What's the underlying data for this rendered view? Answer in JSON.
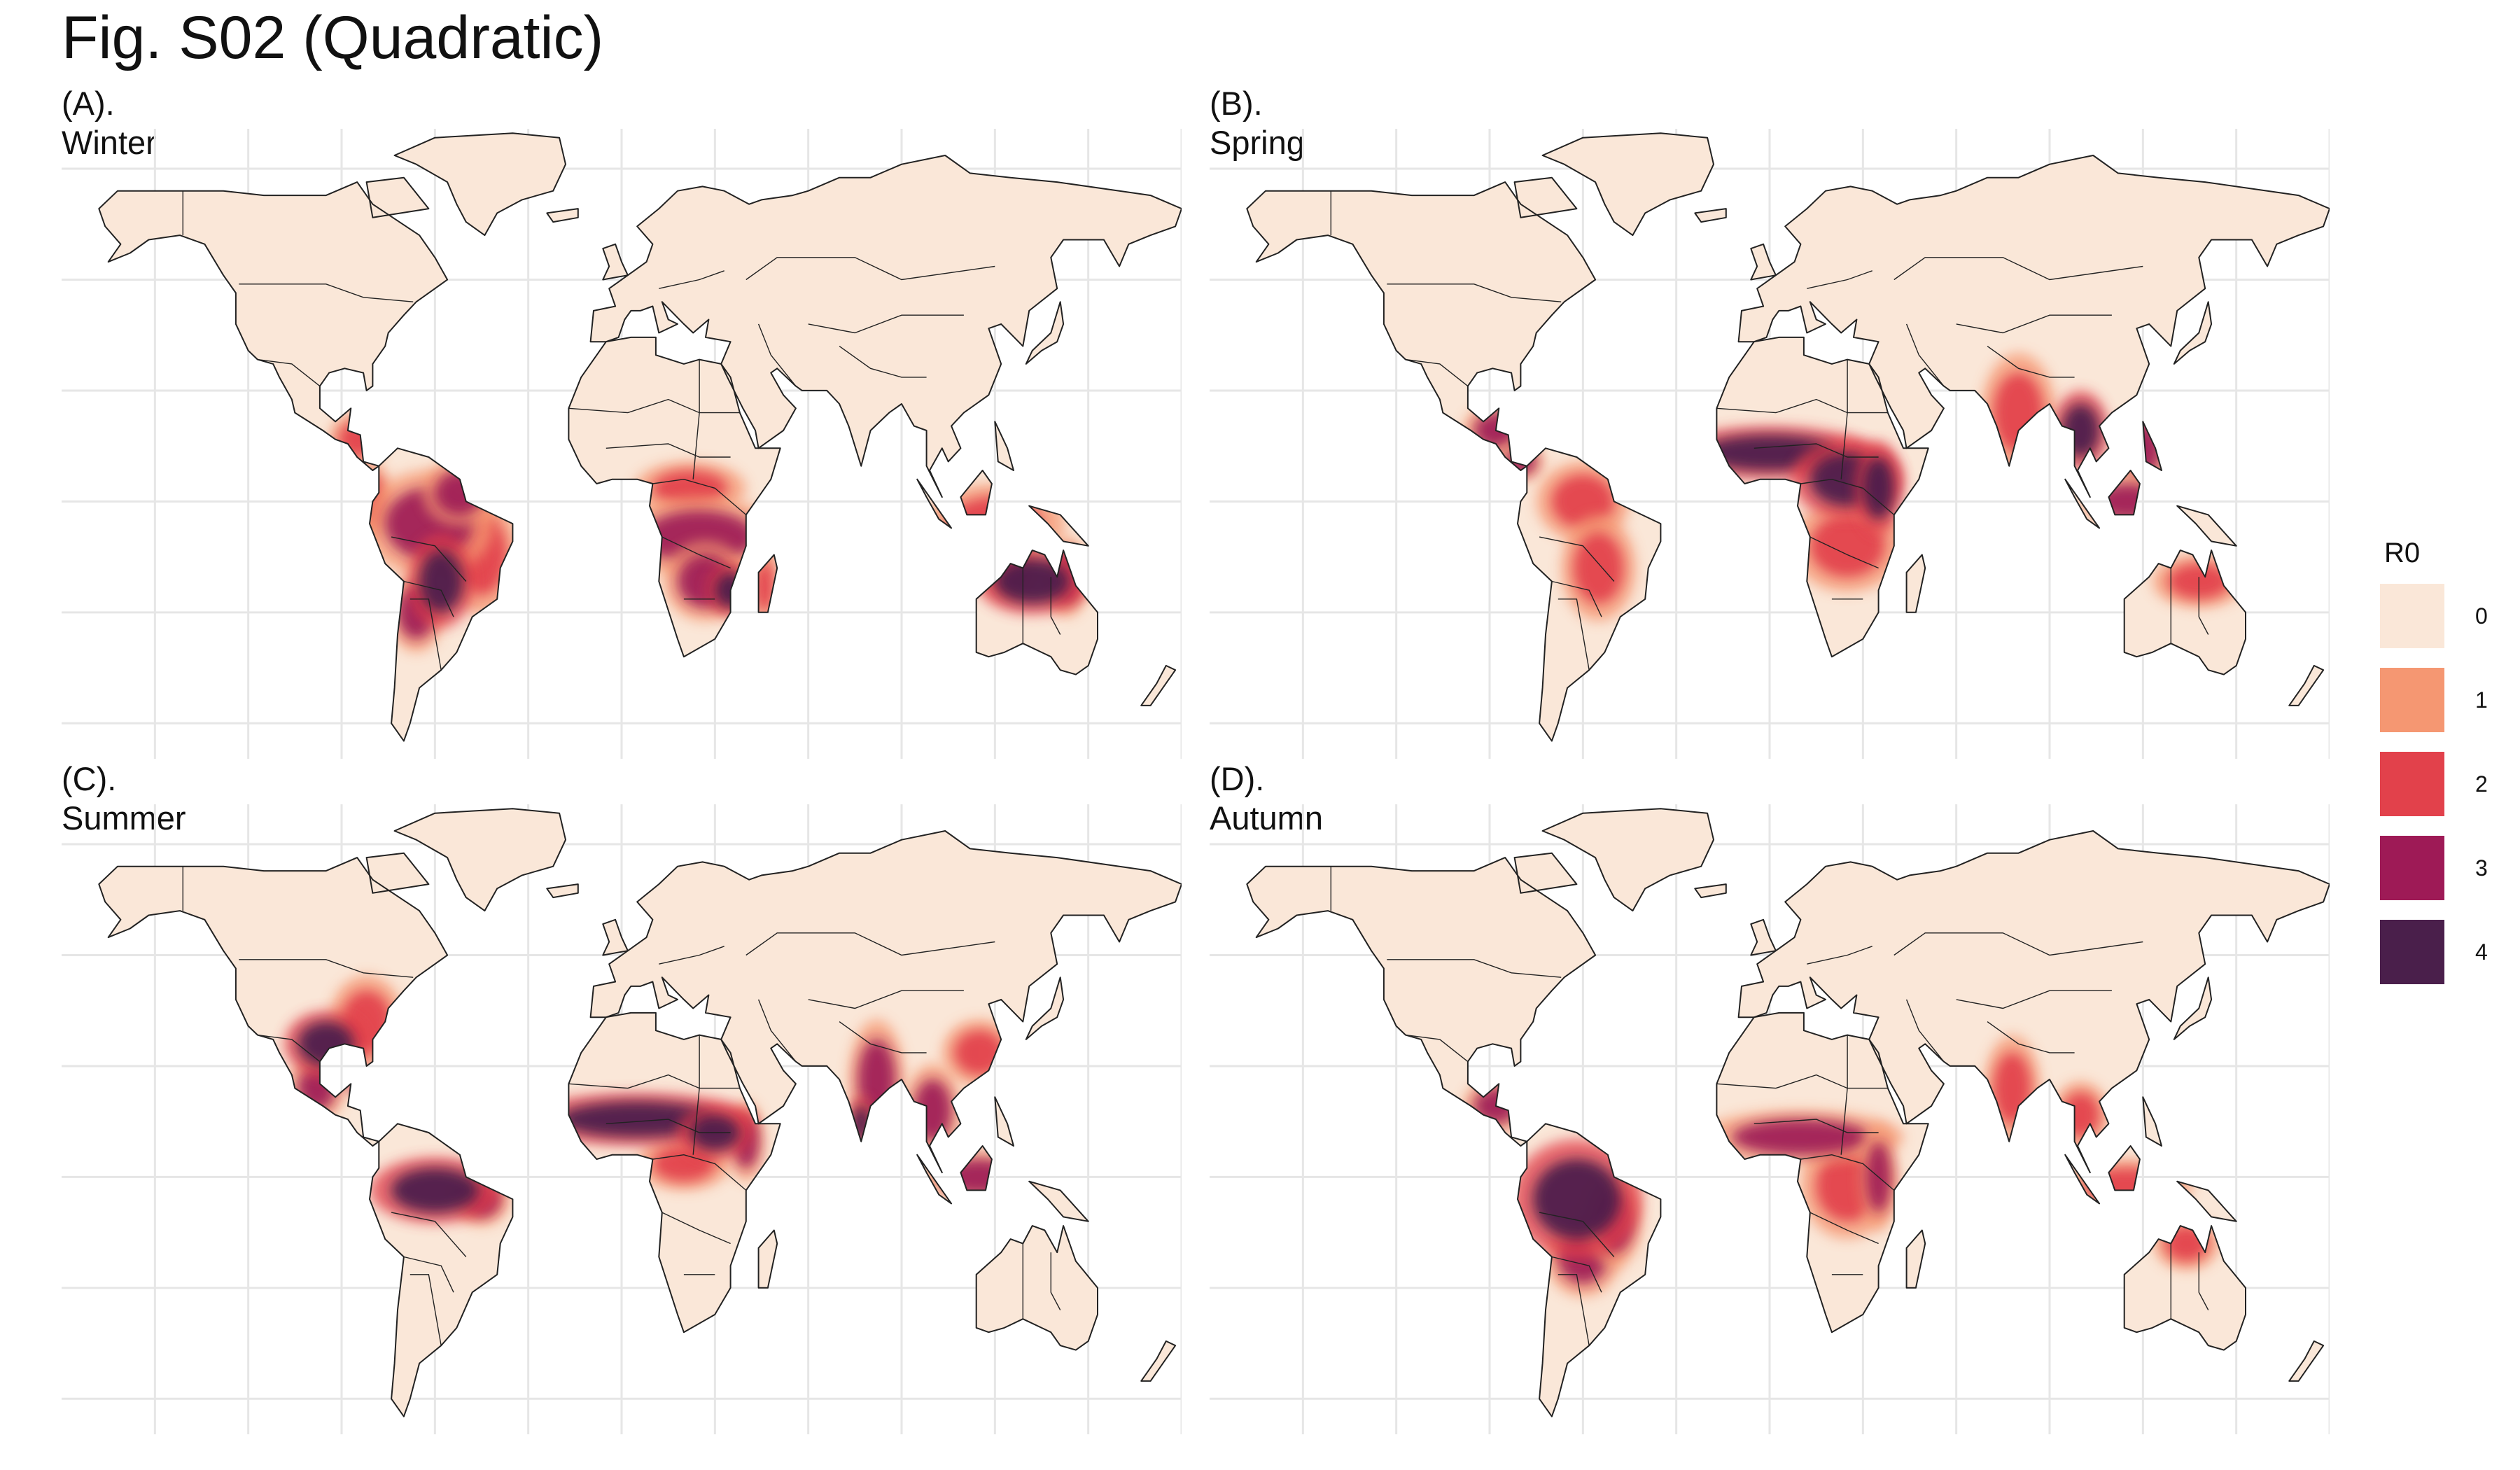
{
  "figure": {
    "title": "Fig. S02 (Quadratic)"
  },
  "panels": [
    {
      "id": "A",
      "title": "(A). Winter",
      "blobs": [
        {
          "lon": -62,
          "lat": -5,
          "rx": 14,
          "ry": 8,
          "level": 3
        },
        {
          "lon": -52,
          "lat": 2,
          "rx": 8,
          "ry": 5,
          "level": 3
        },
        {
          "lon": -58,
          "lat": -18,
          "rx": 7,
          "ry": 7,
          "level": 4
        },
        {
          "lon": -66,
          "lat": -25,
          "rx": 6,
          "ry": 6,
          "level": 3
        },
        {
          "lon": -45,
          "lat": -12,
          "rx": 8,
          "ry": 9,
          "level": 2
        },
        {
          "lon": -80,
          "lat": 0,
          "rx": 4,
          "ry": 6,
          "level": 2
        },
        {
          "lon": 25,
          "lat": -8,
          "rx": 18,
          "ry": 6,
          "level": 3
        },
        {
          "lon": 27,
          "lat": -18,
          "rx": 9,
          "ry": 6,
          "level": 3
        },
        {
          "lon": 35,
          "lat": -20,
          "rx": 5,
          "ry": 4,
          "level": 4
        },
        {
          "lon": 22,
          "lat": 3,
          "rx": 12,
          "ry": 4,
          "level": 2
        },
        {
          "lon": 46,
          "lat": -19,
          "rx": 3,
          "ry": 6,
          "level": 2
        },
        {
          "lon": 132,
          "lat": -18,
          "rx": 12,
          "ry": 5,
          "level": 4
        },
        {
          "lon": 125,
          "lat": -16,
          "rx": 6,
          "ry": 4,
          "level": 3
        },
        {
          "lon": 143,
          "lat": -17,
          "rx": 5,
          "ry": 6,
          "level": 3
        },
        {
          "lon": 120,
          "lat": -5,
          "rx": 15,
          "ry": 6,
          "level": 2
        },
        {
          "lon": -85,
          "lat": 14,
          "rx": 6,
          "ry": 4,
          "level": 2
        }
      ]
    },
    {
      "id": "B",
      "title": "(B). Spring",
      "blobs": [
        {
          "lon": 0,
          "lat": 11,
          "rx": 22,
          "ry": 4,
          "level": 4
        },
        {
          "lon": 25,
          "lat": 5,
          "rx": 12,
          "ry": 6,
          "level": 4
        },
        {
          "lon": 35,
          "lat": 3,
          "rx": 5,
          "ry": 7,
          "level": 4
        },
        {
          "lon": 25,
          "lat": -10,
          "rx": 12,
          "ry": 7,
          "level": 2
        },
        {
          "lon": 100,
          "lat": 16,
          "rx": 6,
          "ry": 6,
          "level": 4
        },
        {
          "lon": 80,
          "lat": 20,
          "rx": 8,
          "ry": 9,
          "level": 2
        },
        {
          "lon": 120,
          "lat": 12,
          "rx": 6,
          "ry": 6,
          "level": 3
        },
        {
          "lon": 115,
          "lat": 0,
          "rx": 10,
          "ry": 4,
          "level": 3
        },
        {
          "lon": -88,
          "lat": 16,
          "rx": 7,
          "ry": 4,
          "level": 3
        },
        {
          "lon": -60,
          "lat": 0,
          "rx": 10,
          "ry": 6,
          "level": 2
        },
        {
          "lon": -55,
          "lat": -15,
          "rx": 8,
          "ry": 8,
          "level": 2
        },
        {
          "lon": 138,
          "lat": -18,
          "rx": 10,
          "ry": 4,
          "level": 2
        },
        {
          "lon": -80,
          "lat": 9,
          "rx": 5,
          "ry": 3,
          "level": 3
        }
      ]
    },
    {
      "id": "C",
      "title": "(C). Summer",
      "blobs": [
        {
          "lon": 5,
          "lat": 13,
          "rx": 25,
          "ry": 4,
          "level": 4
        },
        {
          "lon": 30,
          "lat": 10,
          "rx": 8,
          "ry": 4,
          "level": 4
        },
        {
          "lon": -60,
          "lat": -3,
          "rx": 14,
          "ry": 5,
          "level": 4
        },
        {
          "lon": -45,
          "lat": -5,
          "rx": 6,
          "ry": 4,
          "level": 3
        },
        {
          "lon": -95,
          "lat": 30,
          "rx": 9,
          "ry": 5,
          "level": 4
        },
        {
          "lon": -82,
          "lat": 35,
          "rx": 8,
          "ry": 7,
          "level": 2
        },
        {
          "lon": -98,
          "lat": 20,
          "rx": 6,
          "ry": 5,
          "level": 3
        },
        {
          "lon": 82,
          "lat": 22,
          "rx": 6,
          "ry": 9,
          "level": 3
        },
        {
          "lon": 77,
          "lat": 12,
          "rx": 3,
          "ry": 4,
          "level": 4
        },
        {
          "lon": 100,
          "lat": 15,
          "rx": 6,
          "ry": 7,
          "level": 3
        },
        {
          "lon": 115,
          "lat": 28,
          "rx": 8,
          "ry": 5,
          "level": 2
        },
        {
          "lon": 115,
          "lat": 0,
          "rx": 12,
          "ry": 4,
          "level": 3
        },
        {
          "lon": -80,
          "lat": 21,
          "rx": 6,
          "ry": 2,
          "level": 4
        },
        {
          "lon": 20,
          "lat": 3,
          "rx": 10,
          "ry": 4,
          "level": 2
        },
        {
          "lon": 40,
          "lat": 8,
          "rx": 4,
          "ry": 6,
          "level": 3
        }
      ]
    },
    {
      "id": "D",
      "title": "(D). Autumn",
      "blobs": [
        {
          "lon": -62,
          "lat": -5,
          "rx": 14,
          "ry": 9,
          "level": 4
        },
        {
          "lon": -60,
          "lat": -18,
          "rx": 8,
          "ry": 6,
          "level": 3
        },
        {
          "lon": -50,
          "lat": -10,
          "rx": 6,
          "ry": 7,
          "level": 3
        },
        {
          "lon": 10,
          "lat": 9,
          "rx": 22,
          "ry": 4,
          "level": 3
        },
        {
          "lon": 25,
          "lat": -2,
          "rx": 10,
          "ry": 8,
          "level": 2
        },
        {
          "lon": 35,
          "lat": 0,
          "rx": 4,
          "ry": 8,
          "level": 3
        },
        {
          "lon": 78,
          "lat": 20,
          "rx": 6,
          "ry": 8,
          "level": 2
        },
        {
          "lon": 100,
          "lat": 14,
          "rx": 6,
          "ry": 5,
          "level": 2
        },
        {
          "lon": 115,
          "lat": -2,
          "rx": 14,
          "ry": 4,
          "level": 2
        },
        {
          "lon": -88,
          "lat": 16,
          "rx": 7,
          "ry": 4,
          "level": 3
        },
        {
          "lon": 134,
          "lat": -15,
          "rx": 7,
          "ry": 4,
          "level": 2
        },
        {
          "lon": -78,
          "lat": 20,
          "rx": 5,
          "ry": 2,
          "level": 4
        }
      ]
    }
  ],
  "legend": {
    "title": "R0",
    "items": [
      {
        "label": "0",
        "color": "#fae7d8"
      },
      {
        "label": "1",
        "color": "#f59772"
      },
      {
        "label": "2",
        "color": "#e2414b"
      },
      {
        "label": "3",
        "color": "#9e1a56"
      },
      {
        "label": "4",
        "color": "#4a1f4b"
      }
    ]
  },
  "colors": {
    "land": "#fae7d8",
    "border": "#222222",
    "grid": "#e6e6e6"
  }
}
